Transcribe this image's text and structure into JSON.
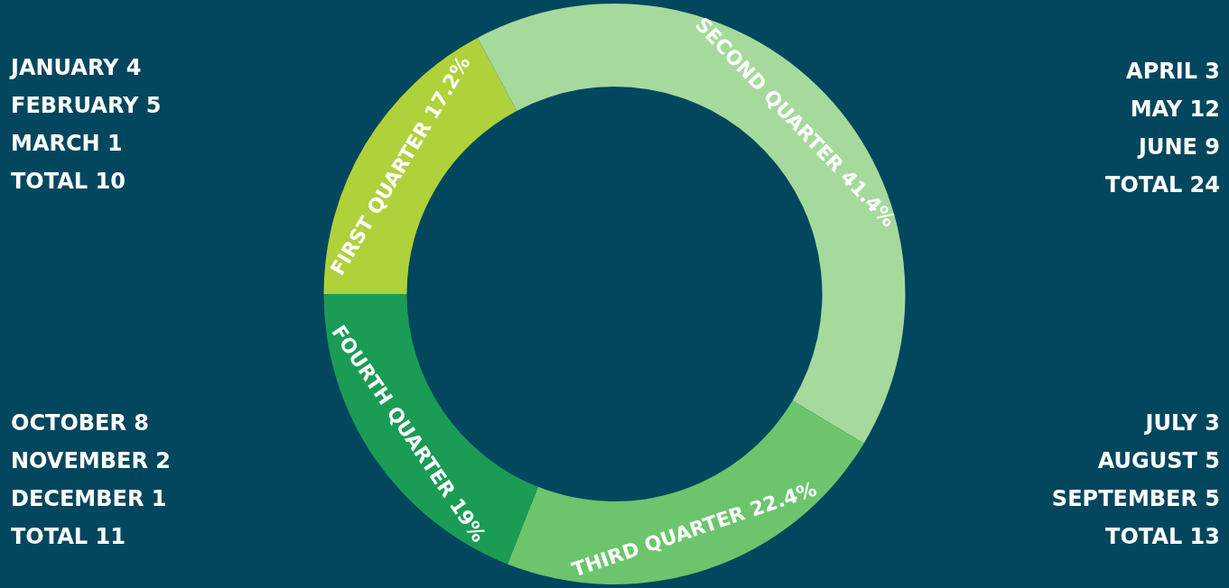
{
  "chart_data": {
    "type": "donut",
    "categories": [
      "FIRST QUARTER",
      "SECOND QUARTER",
      "THIRD QUARTER",
      "FOURTH QUARTER"
    ],
    "values": [
      17.2,
      41.4,
      22.4,
      19
    ],
    "value_labels": [
      "17.2%",
      "41.4%",
      "22.4%",
      "19%"
    ],
    "colors": [
      "#afd13a",
      "#a5da9c",
      "#6cc56c",
      "#1a9c55"
    ],
    "annotations": [
      "JANUARY 4",
      "FEBRUARY 5",
      "MARCH 1",
      "TOTAL 10",
      "APRIL 3",
      "MAY 12",
      "JUNE 9",
      "TOTAL 24",
      "OCTOBER 8",
      "NOVEMBER 2",
      "DECEMBER 1",
      "TOTAL 11",
      "JULY 3",
      "AUGUST 5",
      "SEPTEMBER 5",
      "TOTAL 13"
    ]
  }
}
